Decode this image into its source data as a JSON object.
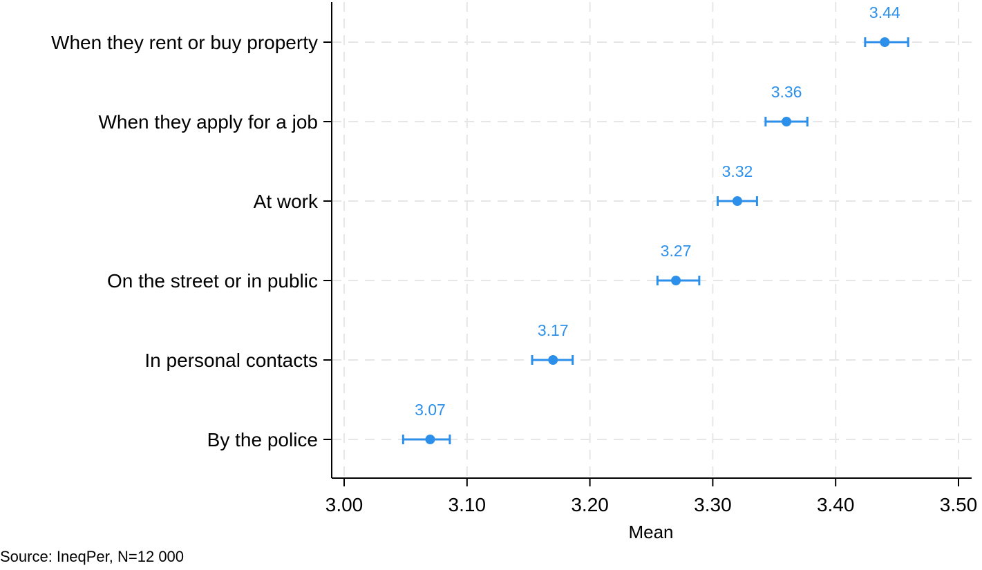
{
  "chart_data": {
    "type": "scatter",
    "subtype": "dot-plot-with-confidence-intervals",
    "categories": [
      "When they rent or buy property",
      "When they apply for a job",
      "At work",
      "On the street or in public",
      "In personal contacts",
      "By the police"
    ],
    "series": [
      {
        "name": "Mean",
        "values": [
          3.44,
          3.36,
          3.32,
          3.27,
          3.17,
          3.07
        ],
        "labels": [
          "3.44",
          "3.36",
          "3.32",
          "3.27",
          "3.17",
          "3.07"
        ],
        "ci_low": [
          3.424,
          3.343,
          3.304,
          3.255,
          3.153,
          3.048
        ],
        "ci_high": [
          3.459,
          3.377,
          3.336,
          3.289,
          3.186,
          3.086
        ],
        "color": "#2c8fea"
      }
    ],
    "xlabel": "Mean",
    "xlim": [
      2.99,
      3.51
    ],
    "xticks": [
      3.0,
      3.1,
      3.2,
      3.3,
      3.4,
      3.5
    ],
    "xtick_labels": [
      "3.00",
      "3.10",
      "3.20",
      "3.30",
      "3.40",
      "3.50"
    ],
    "grid": true
  },
  "source": "Source: IneqPer, N=12 000"
}
